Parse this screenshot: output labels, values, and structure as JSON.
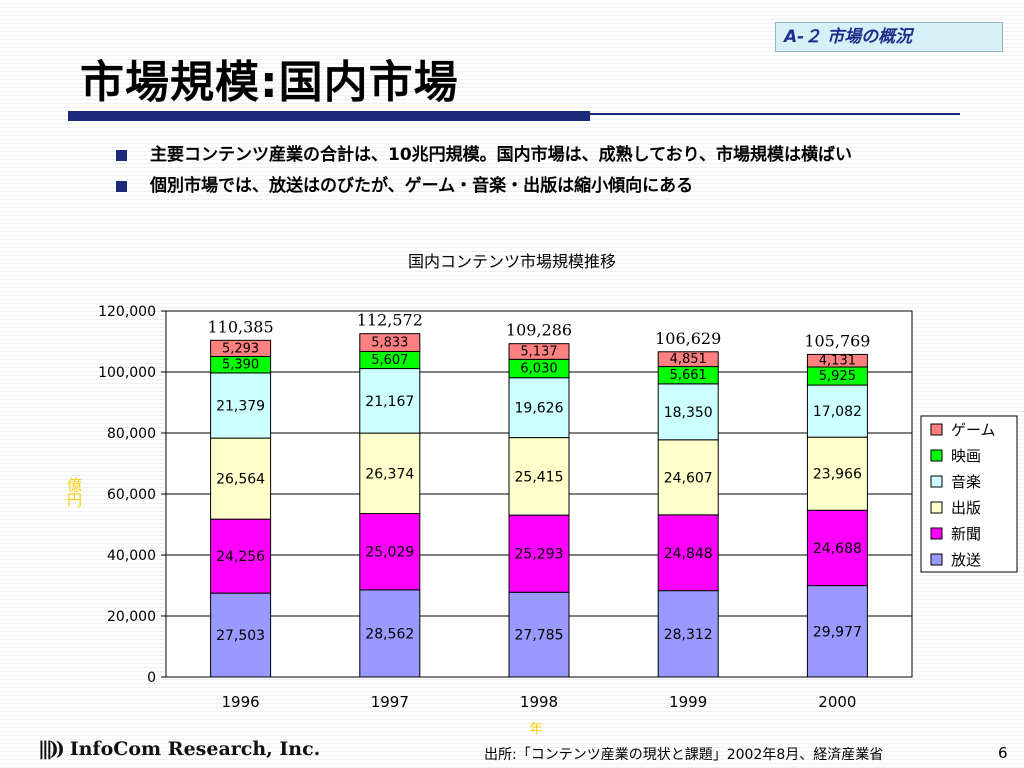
{
  "header": {
    "section_tag": "A-２ 市場の概況",
    "title": "市場規模:国内市場"
  },
  "bullets": [
    "主要コンテンツ産業の合計は、10兆円規模。国内市場は、成熟しており、市場規模は横ばい",
    "個別市場では、放送はのびたが、ゲーム・音楽・出版は縮小傾向にある"
  ],
  "chart_data": {
    "type": "stacked-bar",
    "title": "国内コンテンツ市場規模推移",
    "ylabel": "億円",
    "xlabel": "年",
    "ylim": [
      0,
      120000
    ],
    "yticks": [
      "0",
      "20,000",
      "40,000",
      "60,000",
      "80,000",
      "100,000",
      "120,000"
    ],
    "grid": true,
    "legend_position": "right",
    "categories": [
      "1996",
      "1997",
      "1998",
      "1999",
      "2000"
    ],
    "series": [
      {
        "name": "放送",
        "color": "#9999ff",
        "values": [
          27503,
          28562,
          27785,
          28312,
          29977
        ],
        "labels": [
          "27,503",
          "28,562",
          "27,785",
          "28,312",
          "29,977"
        ]
      },
      {
        "name": "新聞",
        "color": "#ff00ff",
        "values": [
          24256,
          25029,
          25293,
          24848,
          24688
        ],
        "labels": [
          "24,256",
          "25,029",
          "25,293",
          "24,848",
          "24,688"
        ]
      },
      {
        "name": "出版",
        "color": "#ffffcc",
        "values": [
          26564,
          26374,
          25415,
          24607,
          23966
        ],
        "labels": [
          "26,564",
          "26,374",
          "25,415",
          "24,607",
          "23,966"
        ]
      },
      {
        "name": "音楽",
        "color": "#ccffff",
        "values": [
          21379,
          21167,
          19626,
          18350,
          17082
        ],
        "labels": [
          "21,379",
          "21,167",
          "19,626",
          "18,350",
          "17,082"
        ]
      },
      {
        "name": "映画",
        "color": "#00ff00",
        "values": [
          5390,
          5607,
          6030,
          5661,
          5925
        ],
        "labels": [
          "5,390",
          "5,607",
          "6,030",
          "5,661",
          "5,925"
        ]
      },
      {
        "name": "ゲーム",
        "color": "#ff8080",
        "values": [
          5293,
          5833,
          5137,
          4851,
          4131
        ],
        "labels": [
          "5,293",
          "5,833",
          "5,137",
          "4,851",
          "4,131"
        ]
      }
    ],
    "totals": [
      110385,
      112572,
      109286,
      106629,
      105769
    ],
    "total_labels": [
      "110,385",
      "112,572",
      "109,286",
      "106,629",
      "105,769"
    ],
    "label_color": "#ffcc00"
  },
  "footer": {
    "company": "InfoCom Research, Inc.",
    "source": "出所:「コンテンツ産業の現状と課題」2002年8月、経済産業省",
    "page_number": "6"
  }
}
